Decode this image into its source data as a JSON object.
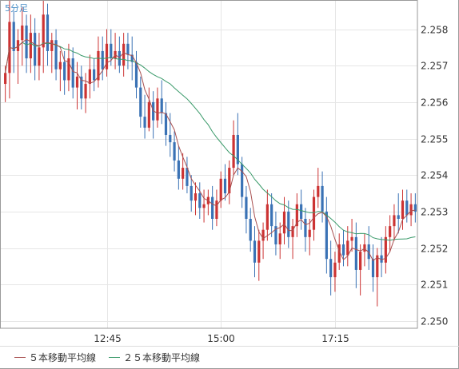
{
  "chart_data": {
    "type": "candlestick",
    "interval_label": "5分足",
    "y_ticks": [
      "2.258",
      "2.257",
      "2.256",
      "2.255",
      "2.254",
      "2.253",
      "2.252",
      "2.251",
      "2.250"
    ],
    "ylim": [
      2.2498,
      2.2588
    ],
    "x_ticks": [
      {
        "label": "12:45",
        "index": 24
      },
      {
        "label": "15:00",
        "index": 51
      },
      {
        "label": "17:15",
        "index": 78
      }
    ],
    "legend": [
      {
        "label": "５本移動平均線",
        "color": "#a85050"
      },
      {
        "label": "２５本移動平均線",
        "color": "#3a9a6a"
      }
    ],
    "colors": {
      "bull_candle": "#cc3333",
      "bear_candle": "#3a72b5",
      "border": "#9a9a9a",
      "grid": "#e6e6e6",
      "label": "#4a90c8",
      "tick_text": "#333333"
    },
    "candles": [
      [
        2.2565,
        2.257,
        2.256,
        2.2568
      ],
      [
        2.2568,
        2.259,
        2.2561,
        2.2582
      ],
      [
        2.2582,
        2.2585,
        2.2568,
        2.2574
      ],
      [
        2.2574,
        2.258,
        2.2565,
        2.2577
      ],
      [
        2.2577,
        2.2586,
        2.257,
        2.2581
      ],
      [
        2.2581,
        2.2584,
        2.2568,
        2.2572
      ],
      [
        2.2572,
        2.2584,
        2.2568,
        2.2579
      ],
      [
        2.2579,
        2.2583,
        2.2566,
        2.257
      ],
      [
        2.257,
        2.2579,
        2.2566,
        2.2575
      ],
      [
        2.2575,
        2.2588,
        2.2568,
        2.2584
      ],
      [
        2.2584,
        2.2587,
        2.257,
        2.2574
      ],
      [
        2.2574,
        2.2579,
        2.2568,
        2.2577
      ],
      [
        2.2577,
        2.258,
        2.2566,
        2.2569
      ],
      [
        2.2569,
        2.2574,
        2.2563,
        2.2571
      ],
      [
        2.2571,
        2.2574,
        2.2562,
        2.2566
      ],
      [
        2.2566,
        2.2576,
        2.2563,
        2.2572
      ],
      [
        2.2572,
        2.2575,
        2.2561,
        2.2564
      ],
      [
        2.2564,
        2.2571,
        2.2558,
        2.2567
      ],
      [
        2.2567,
        2.257,
        2.2558,
        2.2561
      ],
      [
        2.2561,
        2.2568,
        2.2557,
        2.2565
      ],
      [
        2.2565,
        2.2573,
        2.2561,
        2.2569
      ],
      [
        2.2569,
        2.2572,
        2.2563,
        2.2566
      ],
      [
        2.2566,
        2.2578,
        2.2564,
        2.2574
      ],
      [
        2.2574,
        2.2578,
        2.2566,
        2.2569
      ],
      [
        2.2569,
        2.258,
        2.2567,
        2.2576
      ],
      [
        2.2576,
        2.258,
        2.257,
        2.2572
      ],
      [
        2.2572,
        2.2579,
        2.2569,
        2.2574
      ],
      [
        2.2574,
        2.2578,
        2.2568,
        2.257
      ],
      [
        2.257,
        2.2579,
        2.2567,
        2.2576
      ],
      [
        2.2576,
        2.2579,
        2.2569,
        2.2573
      ],
      [
        2.2573,
        2.2578,
        2.2566,
        2.2571
      ],
      [
        2.2571,
        2.2574,
        2.2561,
        2.2564
      ],
      [
        2.2564,
        2.2567,
        2.2553,
        2.2556
      ],
      [
        2.2556,
        2.2562,
        2.255,
        2.2553
      ],
      [
        2.2553,
        2.2564,
        2.2552,
        2.256
      ],
      [
        2.256,
        2.2563,
        2.255,
        2.2555
      ],
      [
        2.2555,
        2.2564,
        2.2553,
        2.2561
      ],
      [
        2.2561,
        2.2566,
        2.2554,
        2.2557
      ],
      [
        2.2557,
        2.256,
        2.2548,
        2.2551
      ],
      [
        2.2551,
        2.2557,
        2.2545,
        2.2549
      ],
      [
        2.2549,
        2.2552,
        2.2541,
        2.2544
      ],
      [
        2.2544,
        2.2548,
        2.2536,
        2.2539
      ],
      [
        2.2539,
        2.2546,
        2.2536,
        2.2542
      ],
      [
        2.2542,
        2.2545,
        2.2535,
        2.2537
      ],
      [
        2.2537,
        2.254,
        2.253,
        2.2533
      ],
      [
        2.2533,
        2.2538,
        2.2529,
        2.2535
      ],
      [
        2.2535,
        2.2538,
        2.2528,
        2.2531
      ],
      [
        2.2531,
        2.2536,
        2.2527,
        2.2532
      ],
      [
        2.2532,
        2.2536,
        2.2529,
        2.2534
      ],
      [
        2.2534,
        2.2537,
        2.2525,
        2.2528
      ],
      [
        2.2528,
        2.2536,
        2.2526,
        2.2533
      ],
      [
        2.2533,
        2.2541,
        2.2531,
        2.2539
      ],
      [
        2.2539,
        2.2543,
        2.2533,
        2.2535
      ],
      [
        2.2535,
        2.2544,
        2.2532,
        2.2542
      ],
      [
        2.2542,
        2.2555,
        2.254,
        2.2551
      ],
      [
        2.2551,
        2.2557,
        2.254,
        2.2543
      ],
      [
        2.2543,
        2.2545,
        2.2531,
        2.2534
      ],
      [
        2.2534,
        2.2537,
        2.2524,
        2.2528
      ],
      [
        2.2528,
        2.2531,
        2.2519,
        2.2522
      ],
      [
        2.2522,
        2.2526,
        2.2512,
        2.2516
      ],
      [
        2.2516,
        2.2525,
        2.2511,
        2.2522
      ],
      [
        2.2522,
        2.2527,
        2.2517,
        2.2525
      ],
      [
        2.2525,
        2.2536,
        2.2522,
        2.2532
      ],
      [
        2.2532,
        2.2535,
        2.2523,
        2.2526
      ],
      [
        2.2526,
        2.253,
        2.2518,
        2.2521
      ],
      [
        2.2521,
        2.2527,
        2.2517,
        2.2524
      ],
      [
        2.2524,
        2.2534,
        2.2521,
        2.253
      ],
      [
        2.253,
        2.2533,
        2.252,
        2.2523
      ],
      [
        2.2523,
        2.2528,
        2.2517,
        2.2526
      ],
      [
        2.2526,
        2.2535,
        2.2523,
        2.2532
      ],
      [
        2.2532,
        2.2536,
        2.2525,
        2.2528
      ],
      [
        2.2528,
        2.2531,
        2.2519,
        2.2523
      ],
      [
        2.2523,
        2.2528,
        2.2518,
        2.2525
      ],
      [
        2.2525,
        2.2536,
        2.2522,
        2.2534
      ],
      [
        2.2534,
        2.2542,
        2.2531,
        2.2537
      ],
      [
        2.2537,
        2.2541,
        2.2527,
        2.253
      ],
      [
        2.253,
        2.2534,
        2.2513,
        2.2517
      ],
      [
        2.2517,
        2.2522,
        2.2507,
        2.2512
      ],
      [
        2.2512,
        2.2519,
        2.2508,
        2.2516
      ],
      [
        2.2516,
        2.2524,
        2.2514,
        2.2521
      ],
      [
        2.2521,
        2.2525,
        2.2515,
        2.2518
      ],
      [
        2.2518,
        2.2526,
        2.2515,
        2.2522
      ],
      [
        2.2522,
        2.2528,
        2.2519,
        2.2523
      ],
      [
        2.2523,
        2.2527,
        2.2509,
        2.2514
      ],
      [
        2.2514,
        2.2521,
        2.2507,
        2.2519
      ],
      [
        2.2519,
        2.2524,
        2.2515,
        2.2521
      ],
      [
        2.2521,
        2.2526,
        2.2514,
        2.2517
      ],
      [
        2.2517,
        2.2521,
        2.2508,
        2.2512
      ],
      [
        2.2512,
        2.252,
        2.2504,
        2.2518
      ],
      [
        2.2518,
        2.2523,
        2.2512,
        2.2516
      ],
      [
        2.2516,
        2.2526,
        2.2513,
        2.2523
      ],
      [
        2.2523,
        2.2529,
        2.2519,
        2.2526
      ],
      [
        2.2526,
        2.2532,
        2.2522,
        2.2529
      ],
      [
        2.2529,
        2.2535,
        2.2524,
        2.2528
      ],
      [
        2.2528,
        2.2536,
        2.2525,
        2.2533
      ],
      [
        2.2533,
        2.2536,
        2.2527,
        2.2529
      ],
      [
        2.2529,
        2.2535,
        2.2526,
        2.2532
      ],
      [
        2.2532,
        2.2535,
        2.2527,
        2.253
      ]
    ]
  }
}
